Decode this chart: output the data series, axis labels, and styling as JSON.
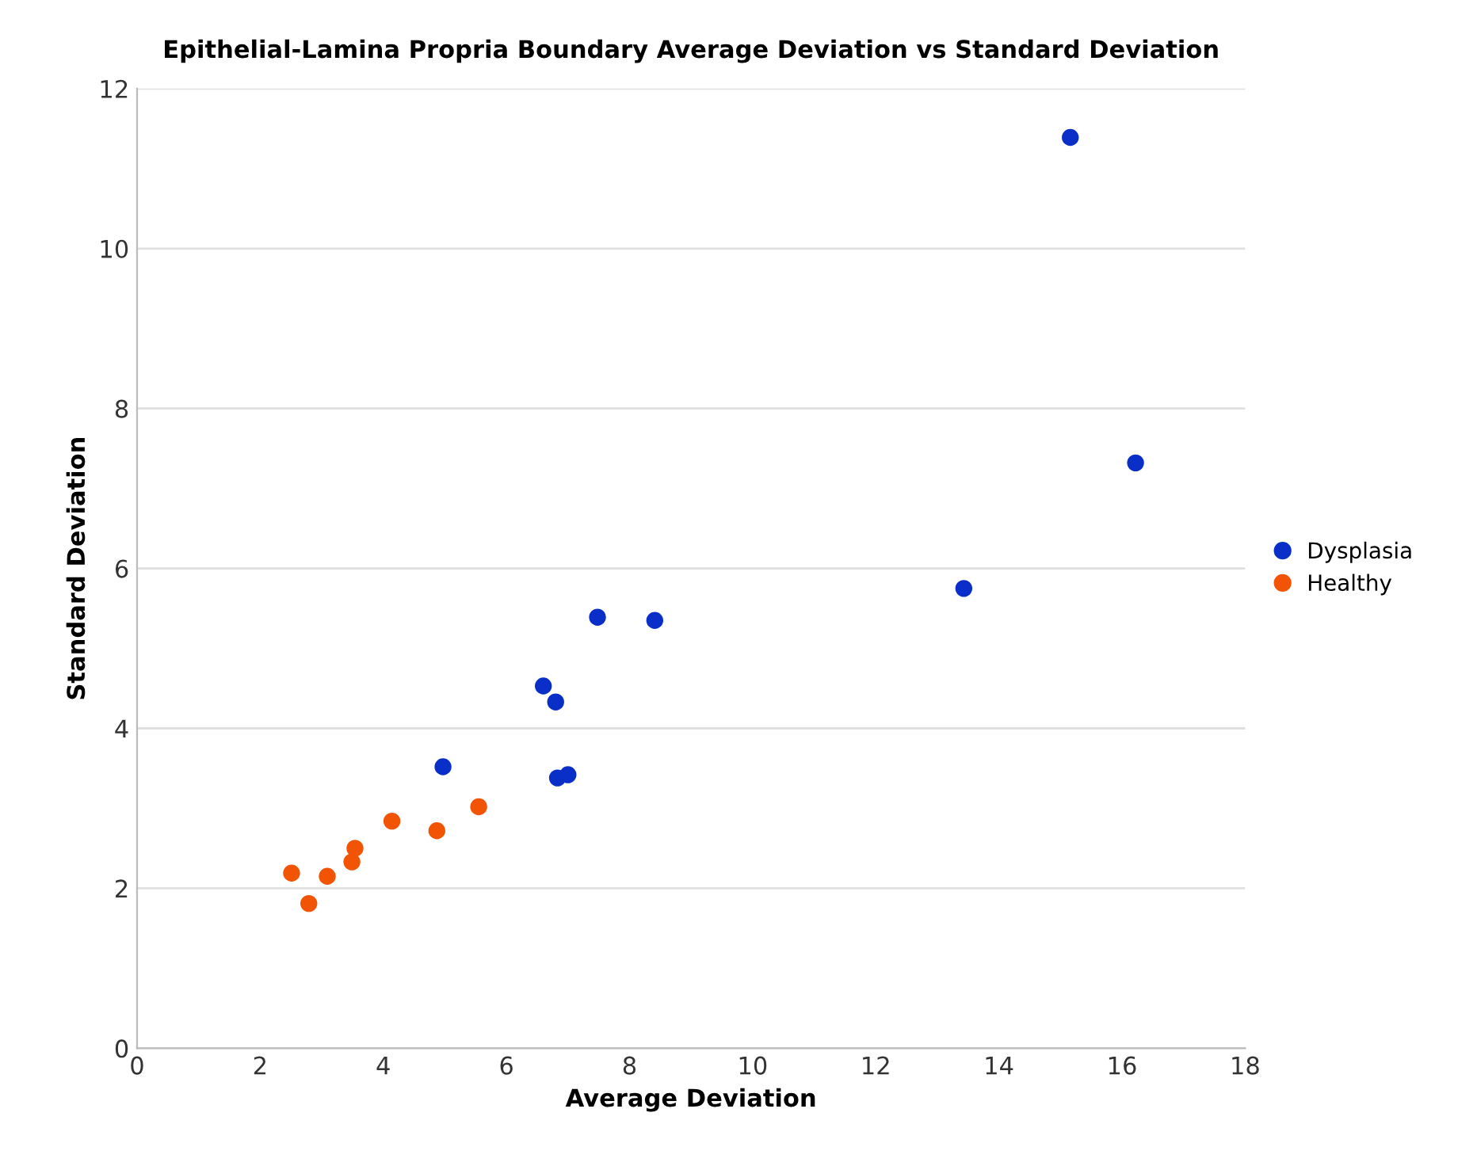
{
  "chart_data": {
    "type": "scatter",
    "title": "Epithelial-Lamina Propria Boundary Average Deviation vs Standard Deviation",
    "xlabel": "Average Deviation",
    "ylabel": "Standard Deviation",
    "xlim": [
      0,
      18
    ],
    "xticks": [
      0,
      2,
      4,
      6,
      8,
      10,
      12,
      14,
      16,
      18
    ],
    "ylim": [
      0,
      12
    ],
    "yticks": [
      0,
      2,
      4,
      6,
      8,
      10,
      12
    ],
    "grid": "y",
    "legend": "right",
    "marker": "circle",
    "series": [
      {
        "name": "Dysplasia",
        "color": "#0a2fc8",
        "x": [
          15.16,
          16.22,
          13.43,
          7.48,
          8.41,
          6.6,
          6.8,
          6.83,
          7.0,
          4.97
        ],
        "values": [
          11.39,
          7.32,
          5.75,
          5.39,
          5.35,
          4.53,
          4.33,
          3.38,
          3.42,
          3.52
        ]
      },
      {
        "name": "Healthy",
        "color": "#f25405",
        "x": [
          2.51,
          2.79,
          3.09,
          3.49,
          3.54,
          4.14,
          4.87,
          5.55
        ],
        "values": [
          2.19,
          1.81,
          2.15,
          2.33,
          2.5,
          2.84,
          2.72,
          3.02
        ]
      }
    ]
  }
}
